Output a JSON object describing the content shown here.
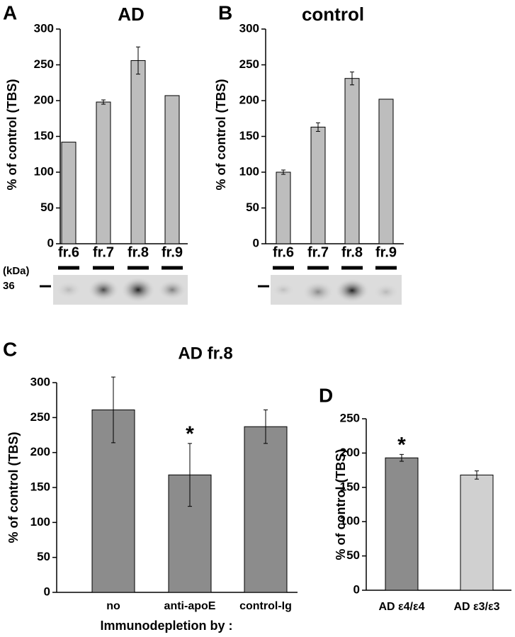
{
  "chart_data": [
    {
      "type": "bar",
      "panel_label": "A",
      "title": "AD",
      "y_label": "% of control (TBS)",
      "categories": [
        "fr.6",
        "fr.7",
        "fr.8",
        "fr.9"
      ],
      "values": [
        142,
        198,
        256,
        207
      ],
      "errors": [
        null,
        3,
        19,
        null
      ],
      "color": "#bdbdbd",
      "ylim": [
        0,
        300
      ],
      "yticks": [
        0,
        50,
        100,
        150,
        200,
        250,
        300
      ],
      "blot_unit": "(kDa)",
      "blot_marker": "36"
    },
    {
      "type": "bar",
      "panel_label": "B",
      "title": "control",
      "y_label": "% of control (TBS)",
      "categories": [
        "fr.6",
        "fr.7",
        "fr.8",
        "fr.9"
      ],
      "values": [
        100,
        163,
        231,
        202
      ],
      "errors": [
        3,
        6,
        9,
        null
      ],
      "color": "#bdbdbd",
      "ylim": [
        0,
        300
      ],
      "yticks": [
        0,
        50,
        100,
        150,
        200,
        250,
        300
      ]
    },
    {
      "type": "bar",
      "panel_label": "C",
      "title": "AD fr.8",
      "y_label": "% of control (TBS)",
      "x_label": "Immunodepletion by :",
      "categories": [
        "no",
        "anti-apoE",
        "control-Ig"
      ],
      "values": [
        261,
        168,
        237
      ],
      "errors": [
        47,
        45,
        24
      ],
      "color": "#8c8c8c",
      "ylim": [
        0,
        300
      ],
      "yticks": [
        0,
        50,
        100,
        150,
        200,
        250,
        300
      ],
      "annotations": [
        {
          "text": "*",
          "category": "anti-apoE"
        }
      ]
    },
    {
      "type": "bar",
      "panel_label": "D",
      "y_label": "% of control (TBS)",
      "categories": [
        "AD ε4/ε4",
        "AD ε3/ε3"
      ],
      "values": [
        193,
        168
      ],
      "errors": [
        5,
        6
      ],
      "colors": [
        "#8c8c8c",
        "#d0d0d0"
      ],
      "ylim": [
        0,
        250
      ],
      "yticks": [
        0,
        50,
        100,
        150,
        200,
        250
      ],
      "annotations": [
        {
          "text": "*",
          "category": "AD ε4/ε4"
        }
      ]
    }
  ]
}
